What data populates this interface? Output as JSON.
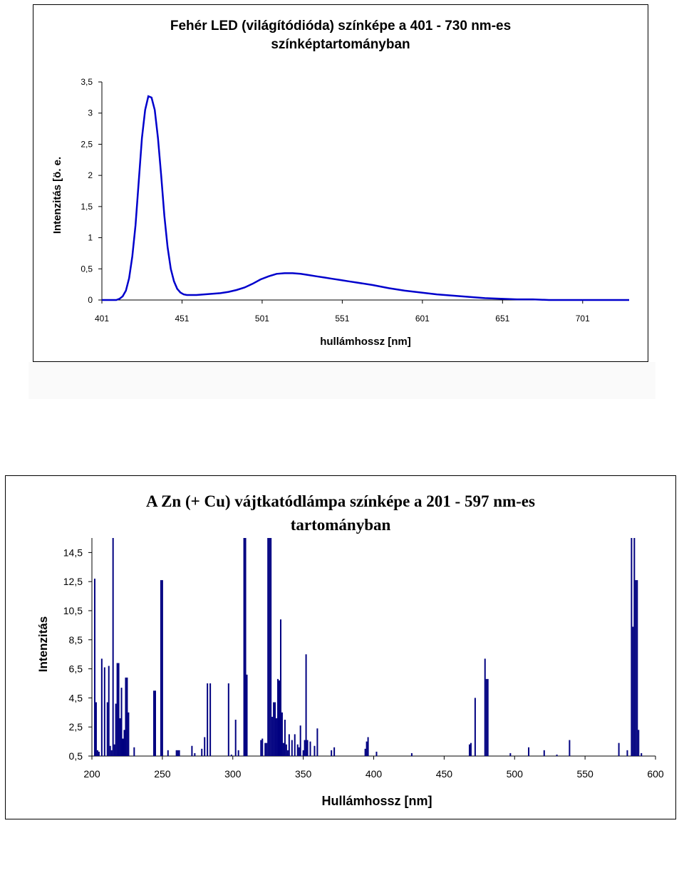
{
  "chart_data": [
    {
      "type": "line",
      "title_line1": "Fehér LED (világítódióda) színképe a 401 - 730 nm-es",
      "title_line2": "színképtartományban",
      "xlabel": "hullámhossz [nm]",
      "ylabel": "Intenzitás [ö. e.",
      "xlim": [
        401,
        730
      ],
      "ylim": [
        0,
        3.5
      ],
      "x_ticks": [
        "401",
        "451",
        "501",
        "551",
        "601",
        "651",
        "701"
      ],
      "x_tick_values": [
        401,
        451,
        501,
        551,
        601,
        651,
        701
      ],
      "y_ticks": [
        "0",
        "0,5",
        "1",
        "1,5",
        "2",
        "2,5",
        "3",
        "3,5"
      ],
      "y_tick_values": [
        0,
        0.5,
        1,
        1.5,
        2,
        2.5,
        3,
        3.5
      ],
      "series_color": "#0000cc",
      "series": [
        {
          "x": [
            401,
            410,
            412,
            414,
            416,
            418,
            420,
            422,
            424,
            426,
            428,
            430,
            432,
            434,
            436,
            438,
            440,
            442,
            444,
            446,
            448,
            450,
            452,
            454,
            456,
            458,
            460,
            465,
            470,
            475,
            480,
            485,
            490,
            495,
            500,
            505,
            510,
            515,
            520,
            525,
            530,
            535,
            540,
            545,
            550,
            555,
            560,
            570,
            580,
            590,
            600,
            610,
            620,
            630,
            640,
            650,
            660,
            670,
            680,
            690,
            700,
            710,
            720,
            730
          ],
          "y": [
            0,
            0,
            0.02,
            0.06,
            0.15,
            0.35,
            0.7,
            1.2,
            1.9,
            2.6,
            3.05,
            3.27,
            3.25,
            3.05,
            2.6,
            2.0,
            1.35,
            0.85,
            0.5,
            0.3,
            0.18,
            0.12,
            0.09,
            0.08,
            0.08,
            0.08,
            0.08,
            0.09,
            0.1,
            0.11,
            0.13,
            0.16,
            0.2,
            0.26,
            0.33,
            0.38,
            0.42,
            0.43,
            0.43,
            0.42,
            0.4,
            0.38,
            0.36,
            0.34,
            0.32,
            0.3,
            0.28,
            0.24,
            0.19,
            0.15,
            0.12,
            0.09,
            0.07,
            0.05,
            0.03,
            0.02,
            0.01,
            0.01,
            0,
            0,
            0,
            0,
            0,
            0
          ]
        }
      ]
    },
    {
      "type": "bar",
      "title_line1": "A Zn (+ Cu) vájtkatódlámpa  színképe a 201 - 597 nm-es",
      "title_line2": "tartományban",
      "xlabel": "Hullámhossz [nm]",
      "ylabel": "Intenzitás",
      "xlim": [
        200,
        600
      ],
      "ylim": [
        0.5,
        15.5
      ],
      "x_ticks": [
        "200",
        "250",
        "300",
        "350",
        "400",
        "450",
        "500",
        "550",
        "600"
      ],
      "x_tick_values": [
        200,
        250,
        300,
        350,
        400,
        450,
        500,
        550,
        600
      ],
      "y_ticks": [
        "0,5",
        "2,5",
        "4,5",
        "6,5",
        "8,5",
        "10,5",
        "12,5",
        "14,5"
      ],
      "y_tick_values": [
        0.5,
        2.5,
        4.5,
        6.5,
        8.5,
        10.5,
        12.5,
        14.5
      ],
      "series_color": "#000080",
      "lines": {
        "x": [
          202,
          203,
          204,
          205,
          207,
          209,
          211,
          212,
          213,
          214,
          215,
          216,
          217,
          218,
          219,
          220,
          221,
          222,
          223,
          224,
          225,
          226,
          230,
          244,
          245,
          249,
          250,
          254,
          260,
          261,
          262,
          271,
          273,
          278,
          280,
          282,
          284,
          297,
          299,
          302,
          304,
          308,
          309,
          310,
          320,
          321,
          323,
          324,
          325,
          326,
          327,
          328,
          329,
          330,
          331,
          332,
          333,
          334,
          335,
          336,
          337,
          338,
          339,
          340,
          342,
          344,
          346,
          347,
          348,
          350,
          351,
          352,
          353,
          355,
          358,
          360,
          370,
          372,
          394,
          395,
          396,
          402,
          427,
          468,
          469,
          472,
          479,
          480,
          481,
          497,
          510,
          521,
          530,
          539,
          574,
          580,
          583,
          584,
          585,
          586,
          587,
          588,
          590
        ],
        "y": [
          12.7,
          4.2,
          0.9,
          0.8,
          7.2,
          6.6,
          4.2,
          6.7,
          1.2,
          0.9,
          15.5,
          1.3,
          4.1,
          6.9,
          6.9,
          3.1,
          5.2,
          1.7,
          2.3,
          5.9,
          5.9,
          3.5,
          1.1,
          5.0,
          5.0,
          12.6,
          12.6,
          0.9,
          0.9,
          0.9,
          0.9,
          1.2,
          0.7,
          1.0,
          1.8,
          5.5,
          5.5,
          5.5,
          0.6,
          3.0,
          0.9,
          15.5,
          15.5,
          6.1,
          1.6,
          1.7,
          1.4,
          1.4,
          15.5,
          15.5,
          15.5,
          3.2,
          4.2,
          4.2,
          3.1,
          5.8,
          5.7,
          9.9,
          3.5,
          1.4,
          3.0,
          1.3,
          0.9,
          2.0,
          1.6,
          2.0,
          1.3,
          1.1,
          2.6,
          0.9,
          1.6,
          7.5,
          1.6,
          1.5,
          1.2,
          2.4,
          0.9,
          1.1,
          1.0,
          1.5,
          1.8,
          0.8,
          0.7,
          1.3,
          1.4,
          4.5,
          7.2,
          5.8,
          5.8,
          0.7,
          1.1,
          0.9,
          0.6,
          1.6,
          1.4,
          0.9,
          15.5,
          9.4,
          15.5,
          12.6,
          12.6,
          2.3,
          0.7
        ]
      }
    }
  ]
}
